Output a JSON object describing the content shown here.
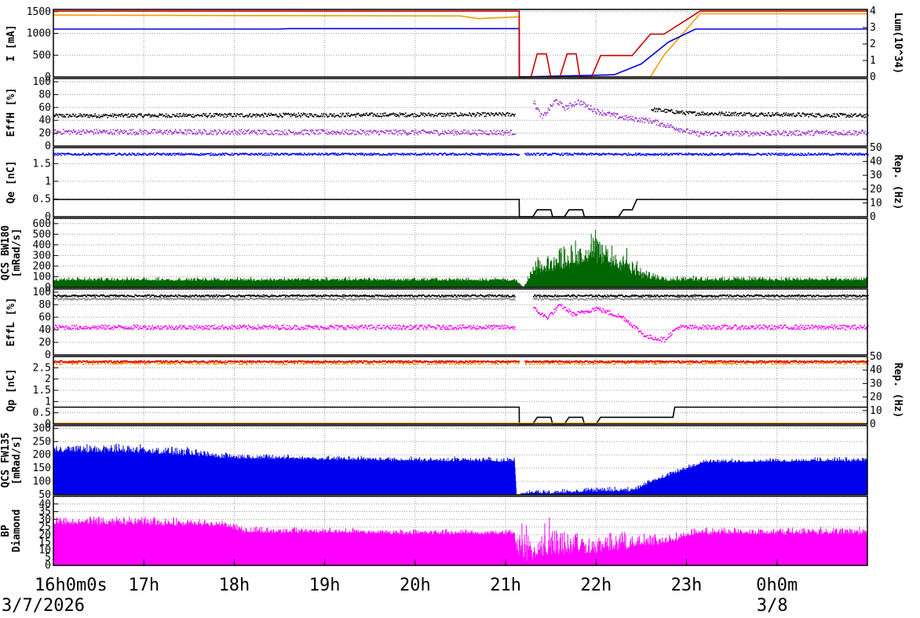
{
  "chart_data": {
    "type": "line",
    "x_axis": {
      "tick_labels": [
        "16h0m0s",
        "17h",
        "18h",
        "19h",
        "20h",
        "21h",
        "22h",
        "23h",
        "0h0m"
      ],
      "tick_hours": [
        16,
        17,
        18,
        19,
        20,
        21,
        22,
        23,
        24
      ],
      "range_hours": [
        16,
        25
      ],
      "date_start": "3/7/2026",
      "date_next": "3/8"
    },
    "grid": true,
    "panels": [
      {
        "ylabel": "I [mA]",
        "yticks": [
          0,
          500,
          1000,
          1500
        ],
        "ylim": [
          0,
          1550
        ],
        "y2label": "Lum(10^34)",
        "y2ticks": [
          0,
          1,
          2,
          3,
          4
        ],
        "y2lim": [
          0,
          4.1
        ],
        "series": [
          {
            "color": "#f0a000",
            "axis": "left",
            "kind": "line",
            "x": [
              16,
              18,
              20.5,
              20.7,
              21.15,
              21.152,
              22.6,
              22.75,
              23.15,
              25
            ],
            "y": [
              1420,
              1410,
              1400,
              1340,
              1380,
              0,
              0,
              500,
              1450,
              1450
            ]
          },
          {
            "color": "#0000dd",
            "axis": "left",
            "kind": "line",
            "x": [
              16,
              18.5,
              18.6,
              21.15,
              21.152,
              22.2,
              22.5,
              22.8,
              23.1,
              25
            ],
            "y": [
              1100,
              1100,
              1110,
              1110,
              0,
              50,
              300,
              800,
              1100,
              1100
            ]
          },
          {
            "color": "#cc0000",
            "axis": "right",
            "kind": "line",
            "x": [
              16,
              21.15,
              21.152,
              21.28,
              21.35,
              21.45,
              21.5,
              21.6,
              21.68,
              21.78,
              21.82,
              21.95,
              22.05,
              22.4,
              22.6,
              22.75,
              23.15,
              25
            ],
            "y": [
              4.0,
              4.0,
              0,
              0,
              1.4,
              1.4,
              0,
              0,
              1.4,
              1.4,
              0,
              0,
              1.3,
              1.3,
              2.6,
              2.6,
              4.0,
              4.0
            ]
          }
        ]
      },
      {
        "ylabel": "EffH [%]",
        "yticks": [
          0,
          20,
          40,
          60,
          80,
          100
        ],
        "ylim": [
          0,
          105
        ],
        "series": [
          {
            "color": "#000000",
            "kind": "band",
            "x": [
              16,
              21.1,
              21.12,
              22.3,
              22.6,
              23,
              25
            ],
            "y": [
              48,
              50,
              null,
              null,
              58,
              52,
              48
            ],
            "spread": 6
          },
          {
            "color": "#9933cc",
            "kind": "band",
            "x": [
              16,
              21.1,
              21.12,
              21.3,
              21.4,
              21.55,
              21.65,
              21.8,
              22.0,
              22.3,
              22.6,
              22.9,
              23.1,
              25
            ],
            "y": [
              23,
              22,
              null,
              70,
              45,
              72,
              60,
              70,
              55,
              45,
              40,
              28,
              20,
              22
            ],
            "spread": 8
          }
        ]
      },
      {
        "ylabel": "Qe [nC]",
        "yticks": [
          0,
          0.5,
          1,
          1.5
        ],
        "ylim": [
          0,
          1.95
        ],
        "y2label": "Rep. (Hz)",
        "y2ticks": [
          0,
          10,
          20,
          30,
          40,
          50
        ],
        "y2lim": [
          0,
          50
        ],
        "series": [
          {
            "color": "#0000ff",
            "axis": "left",
            "kind": "band",
            "x": [
              16,
              21.15,
              21.16,
              21.2,
              25
            ],
            "y": [
              1.78,
              1.78,
              null,
              1.78,
              1.78
            ],
            "spread": 0.06
          },
          {
            "color": "#000000",
            "axis": "right",
            "kind": "line",
            "x": [
              16,
              21.15,
              21.152,
              21.3,
              21.35,
              21.5,
              21.52,
              21.65,
              21.7,
              21.85,
              21.87,
              22.25,
              22.3,
              22.4,
              22.45,
              25
            ],
            "y": [
              12.5,
              12.5,
              0,
              0,
              5,
              5,
              0,
              0,
              5,
              5,
              0,
              0,
              5,
              5,
              12.5,
              12.5
            ]
          }
        ]
      },
      {
        "ylabel": "QCS BW180 [mRad/s]",
        "yticks": [
          0,
          100,
          200,
          300,
          400,
          500,
          600
        ],
        "ylim": [
          0,
          650
        ],
        "series": [
          {
            "color": "#006600",
            "kind": "spiky",
            "x": [
              16,
              21.1,
              21.2,
              21.3,
              21.5,
              21.8,
              22.0,
              22.3,
              22.5,
              22.8,
              25
            ],
            "y": [
              60,
              60,
              0,
              100,
              150,
              200,
              220,
              150,
              80,
              60,
              60
            ],
            "peak": [
              100,
              100,
              0,
              250,
              400,
              500,
              600,
              480,
              200,
              120,
              100
            ]
          }
        ]
      },
      {
        "ylabel": "EffL [%]",
        "yticks": [
          0,
          20,
          40,
          60,
          80,
          100
        ],
        "ylim": [
          0,
          105
        ],
        "series": [
          {
            "color": "#000000",
            "kind": "band",
            "x": [
              16,
              21.1,
              21.15,
              21.3,
              25
            ],
            "y": [
              95,
              95,
              null,
              95,
              95
            ],
            "spread": 3
          },
          {
            "color": "#888888",
            "kind": "band",
            "x": [
              16,
              21.1,
              21.15,
              21.3,
              25
            ],
            "y": [
              90,
              90,
              null,
              90,
              90
            ],
            "spread": 3
          },
          {
            "color": "#ff00ff",
            "kind": "band",
            "x": [
              16,
              21.1,
              21.15,
              21.3,
              21.45,
              21.6,
              21.75,
              22.0,
              22.3,
              22.55,
              22.75,
              22.9,
              23.1,
              25
            ],
            "y": [
              45,
              45,
              null,
              75,
              60,
              80,
              65,
              75,
              60,
              30,
              25,
              45,
              45,
              45
            ],
            "spread": 7
          }
        ]
      },
      {
        "ylabel": "Qp [nC]",
        "yticks": [
          0,
          0.5,
          1,
          1.5,
          2,
          2.5
        ],
        "ylim": [
          0,
          3.0
        ],
        "y2label": "Rep. (Hz)",
        "y2ticks": [
          0,
          10,
          20,
          30,
          40,
          50
        ],
        "y2lim": [
          0,
          50
        ],
        "series": [
          {
            "color": "#ff8c00",
            "axis": "left",
            "kind": "band",
            "x": [
              16,
              21.15,
              21.16,
              21.2,
              25
            ],
            "y": [
              2.75,
              2.75,
              null,
              2.75,
              2.75
            ],
            "spread": 0.15
          },
          {
            "color": "#dd0000",
            "axis": "left",
            "kind": "band",
            "x": [
              16,
              21.15,
              21.16,
              21.2,
              25
            ],
            "y": [
              2.8,
              2.8,
              null,
              2.8,
              2.8
            ],
            "spread": 0.08
          },
          {
            "color": "#000000",
            "axis": "right",
            "kind": "line",
            "x": [
              16,
              21.15,
              21.152,
              21.3,
              21.35,
              21.5,
              21.52,
              21.65,
              21.7,
              21.85,
              21.87,
              22.0,
              22.05,
              22.85,
              22.87,
              25
            ],
            "y": [
              12.5,
              12.5,
              0,
              0,
              5,
              5,
              0,
              0,
              5,
              5,
              0,
              0,
              5,
              5,
              12.5,
              12.5
            ]
          },
          {
            "color": "#ff8c00",
            "axis": "right",
            "kind": "line",
            "x": [
              16,
              25
            ],
            "y": [
              0.5,
              0.5
            ]
          }
        ]
      },
      {
        "ylabel": "QCS FW135 [mRad/s]",
        "yticks": [
          50,
          100,
          150,
          200,
          250,
          300
        ],
        "ylim": [
          50,
          310
        ],
        "series": [
          {
            "color": "#0000ee",
            "kind": "spiky",
            "x": [
              16,
              17,
              18,
              19,
              20,
              21.1,
              21.12,
              21.3,
              21.5,
              22.0,
              22.4,
              22.6,
              22.9,
              23.2,
              25
            ],
            "y": [
              210,
              205,
              185,
              180,
              175,
              172,
              50,
              55,
              52,
              60,
              60,
              95,
              130,
              170,
              175
            ],
            "peak": [
              240,
              250,
              210,
              200,
              195,
              195,
              50,
              75,
              70,
              85,
              80,
              110,
              150,
              185,
              195
            ]
          }
        ]
      },
      {
        "ylabel": "BP Diamond",
        "yticks": [
          0,
          5,
          10,
          15,
          20,
          25,
          30,
          35,
          40
        ],
        "ylim": [
          0,
          45
        ],
        "series": [
          {
            "color": "#ff00ff",
            "kind": "spiky",
            "x": [
              16,
              17,
              17.9,
              18.1,
              19,
              20,
              21.1,
              21.12,
              21.3,
              21.5,
              22.0,
              22.3,
              22.6,
              22.9,
              23.1,
              25
            ],
            "y": [
              26,
              26,
              25,
              21,
              21,
              20,
              20,
              0,
              3,
              6,
              8,
              10,
              12,
              16,
              20,
              20
            ],
            "peak": [
              32,
              33,
              30,
              26,
              25,
              24,
              24,
              42,
              25,
              38,
              20,
              25,
              22,
              22,
              25,
              26
            ]
          }
        ]
      }
    ]
  }
}
